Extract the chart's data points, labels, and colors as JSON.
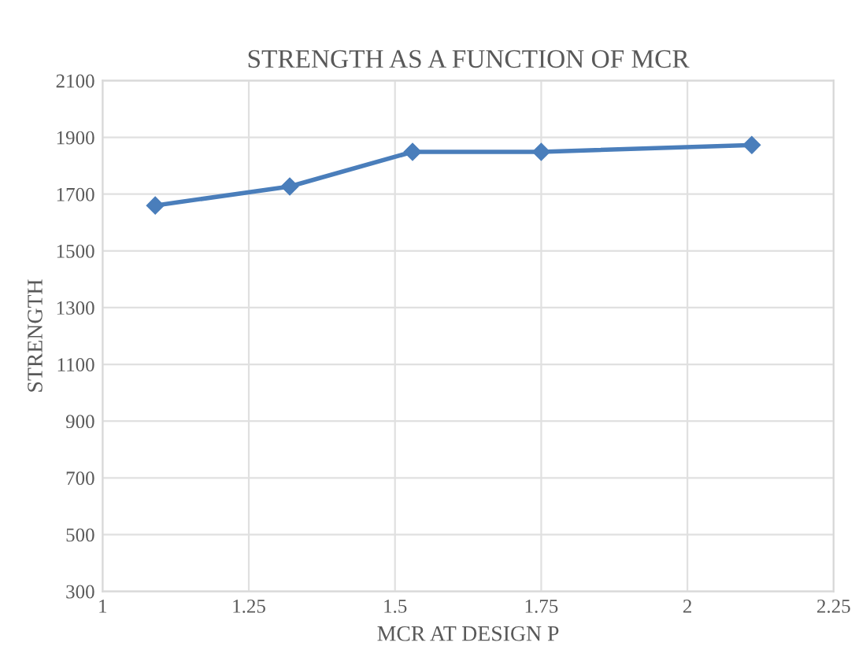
{
  "chart_data": {
    "type": "line",
    "title": "STRENGTH AS A FUNCTION OF MCR",
    "xlabel": "MCR AT DESIGN P",
    "ylabel": "STRENGTH",
    "x": [
      1.09,
      1.32,
      1.53,
      1.75,
      2.11
    ],
    "series": [
      {
        "color": "#4a7ebb",
        "values": [
          1660,
          1727,
          1849,
          1849,
          1873
        ]
      }
    ],
    "xlim": [
      1,
      2.25
    ],
    "xticks": [
      1,
      1.25,
      1.5,
      1.75,
      2,
      2.25
    ],
    "ylim": [
      300,
      2100
    ],
    "yticks": [
      300,
      500,
      700,
      900,
      1100,
      1300,
      1500,
      1700,
      1900,
      2100
    ],
    "grid": true,
    "marker": "diamond",
    "line_style": "solid"
  }
}
